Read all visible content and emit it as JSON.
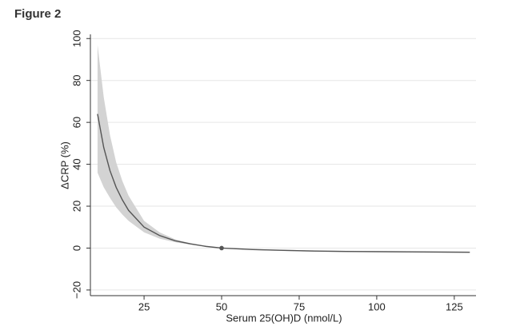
{
  "chart_data": {
    "type": "line",
    "title": "Figure 2",
    "xlabel": "Serum 25(OH)D (nmol/L)",
    "ylabel": "ΔCRP (%)",
    "x": [
      10,
      12,
      14,
      16,
      18,
      20,
      25,
      30,
      35,
      40,
      45,
      50,
      60,
      70,
      80,
      90,
      100,
      110,
      120,
      130
    ],
    "series": [
      {
        "color": "#555555",
        "band_color": "#d3d3d3",
        "values": [
          64,
          48,
          37,
          29,
          23,
          18,
          10,
          6,
          3.5,
          2,
          0.8,
          0,
          -0.7,
          -1.1,
          -1.4,
          -1.6,
          -1.7,
          -1.8,
          -1.9,
          -2
        ],
        "upper": [
          97,
          72,
          54,
          41,
          32,
          25,
          13,
          7.5,
          4.2,
          2.3,
          0.9,
          0,
          -0.5,
          -0.8,
          -1.1,
          -1.3,
          -1.4,
          -1.5,
          -1.6,
          -1.7
        ],
        "lower": [
          36,
          29,
          24,
          19.5,
          16,
          13,
          7.5,
          4.5,
          2.8,
          1.6,
          0.7,
          0,
          -0.9,
          -1.4,
          -1.7,
          -1.9,
          -2,
          -2.1,
          -2.2,
          -2.3
        ]
      }
    ],
    "marker": {
      "x": 50,
      "y": 0,
      "color": "#555555"
    },
    "xlim": [
      7.7,
      132
    ],
    "ylim": [
      -22.7,
      102
    ],
    "xticks": [
      25,
      50,
      75,
      100,
      125
    ],
    "yticks": [
      {
        "value": -20,
        "label": "−20"
      },
      0,
      20,
      40,
      60,
      80,
      100
    ],
    "grid": true
  }
}
